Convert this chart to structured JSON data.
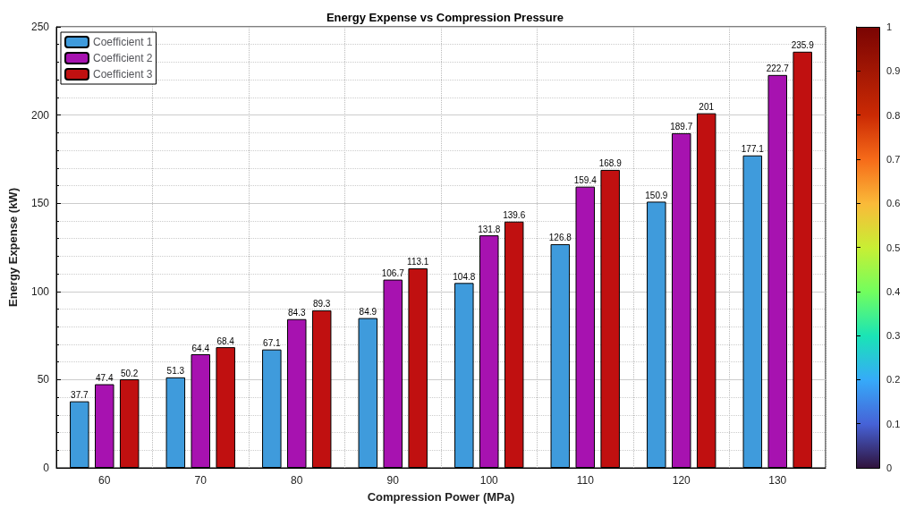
{
  "chart_data": {
    "type": "bar",
    "title": "Energy Expense vs Compression Pressure",
    "xlabel": "Compression Power (MPa)",
    "ylabel": "Energy Expense (kW)",
    "categories": [
      "60",
      "70",
      "80",
      "90",
      "100",
      "110",
      "120",
      "130"
    ],
    "series": [
      {
        "name": "Coefficient 1",
        "color": "#3f9bdc",
        "values": [
          37.7,
          51.3,
          67.1,
          84.9,
          104.8,
          126.8,
          150.9,
          177.1
        ]
      },
      {
        "name": "Coefficient 2",
        "color": "#a712b0",
        "values": [
          47.4,
          64.4,
          84.3,
          106.7,
          131.8,
          159.4,
          189.7,
          222.7
        ]
      },
      {
        "name": "Coefficient 3",
        "color": "#c01010",
        "values": [
          50.2,
          68.4,
          89.3,
          113.1,
          139.6,
          168.9,
          201,
          235.9
        ]
      }
    ],
    "ylim": [
      0,
      250
    ],
    "yticks": [
      0,
      50,
      100,
      150,
      200,
      250
    ],
    "grid": true,
    "legend": "top left",
    "data_labels": true,
    "clim": [
      0,
      1
    ],
    "cticks": [
      0,
      0.1,
      0.2,
      0.3,
      0.4,
      0.5,
      0.6,
      0.7,
      0.8,
      0.9,
      1
    ]
  }
}
